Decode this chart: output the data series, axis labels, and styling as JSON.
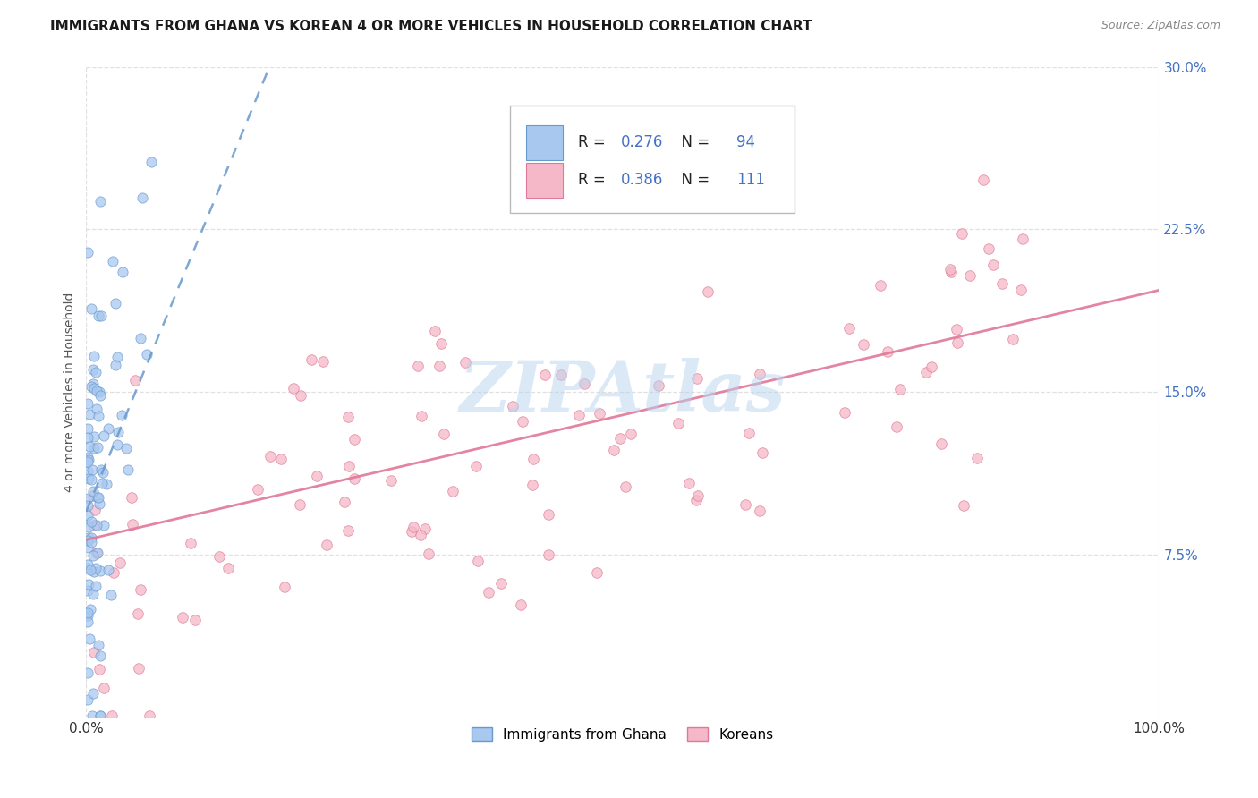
{
  "title": "IMMIGRANTS FROM GHANA VS KOREAN 4 OR MORE VEHICLES IN HOUSEHOLD CORRELATION CHART",
  "source": "Source: ZipAtlas.com",
  "ylabel": "4 or more Vehicles in Household",
  "xlim": [
    0.0,
    1.0
  ],
  "ylim": [
    0.0,
    0.3
  ],
  "xticks": [
    0.0,
    1.0
  ],
  "xtick_labels": [
    "0.0%",
    "100.0%"
  ],
  "yticks": [
    0.0,
    0.075,
    0.15,
    0.225,
    0.3
  ],
  "ytick_labels": [
    "",
    "7.5%",
    "15.0%",
    "22.5%",
    "30.0%"
  ],
  "ghana_color": "#a8c8f0",
  "ghana_edge": "#6699cc",
  "korean_color": "#f5b8c8",
  "korean_edge": "#e07898",
  "ghana_R": 0.276,
  "ghana_N": 94,
  "korean_R": 0.386,
  "korean_N": 111,
  "ghana_line_color": "#6699cc",
  "korean_line_color": "#e07898",
  "watermark": "ZIPAtlas",
  "watermark_color": "#b8d4ee",
  "legend_label_ghana": "Immigrants from Ghana",
  "legend_label_korean": "Koreans",
  "title_fontsize": 11,
  "axis_label_fontsize": 10,
  "tick_fontsize": 11,
  "background_color": "#ffffff",
  "grid_color": "#dddddd",
  "ghana_trend_intercept": 0.095,
  "ghana_trend_slope": 1.2,
  "korean_trend_intercept": 0.082,
  "korean_trend_slope": 0.115
}
